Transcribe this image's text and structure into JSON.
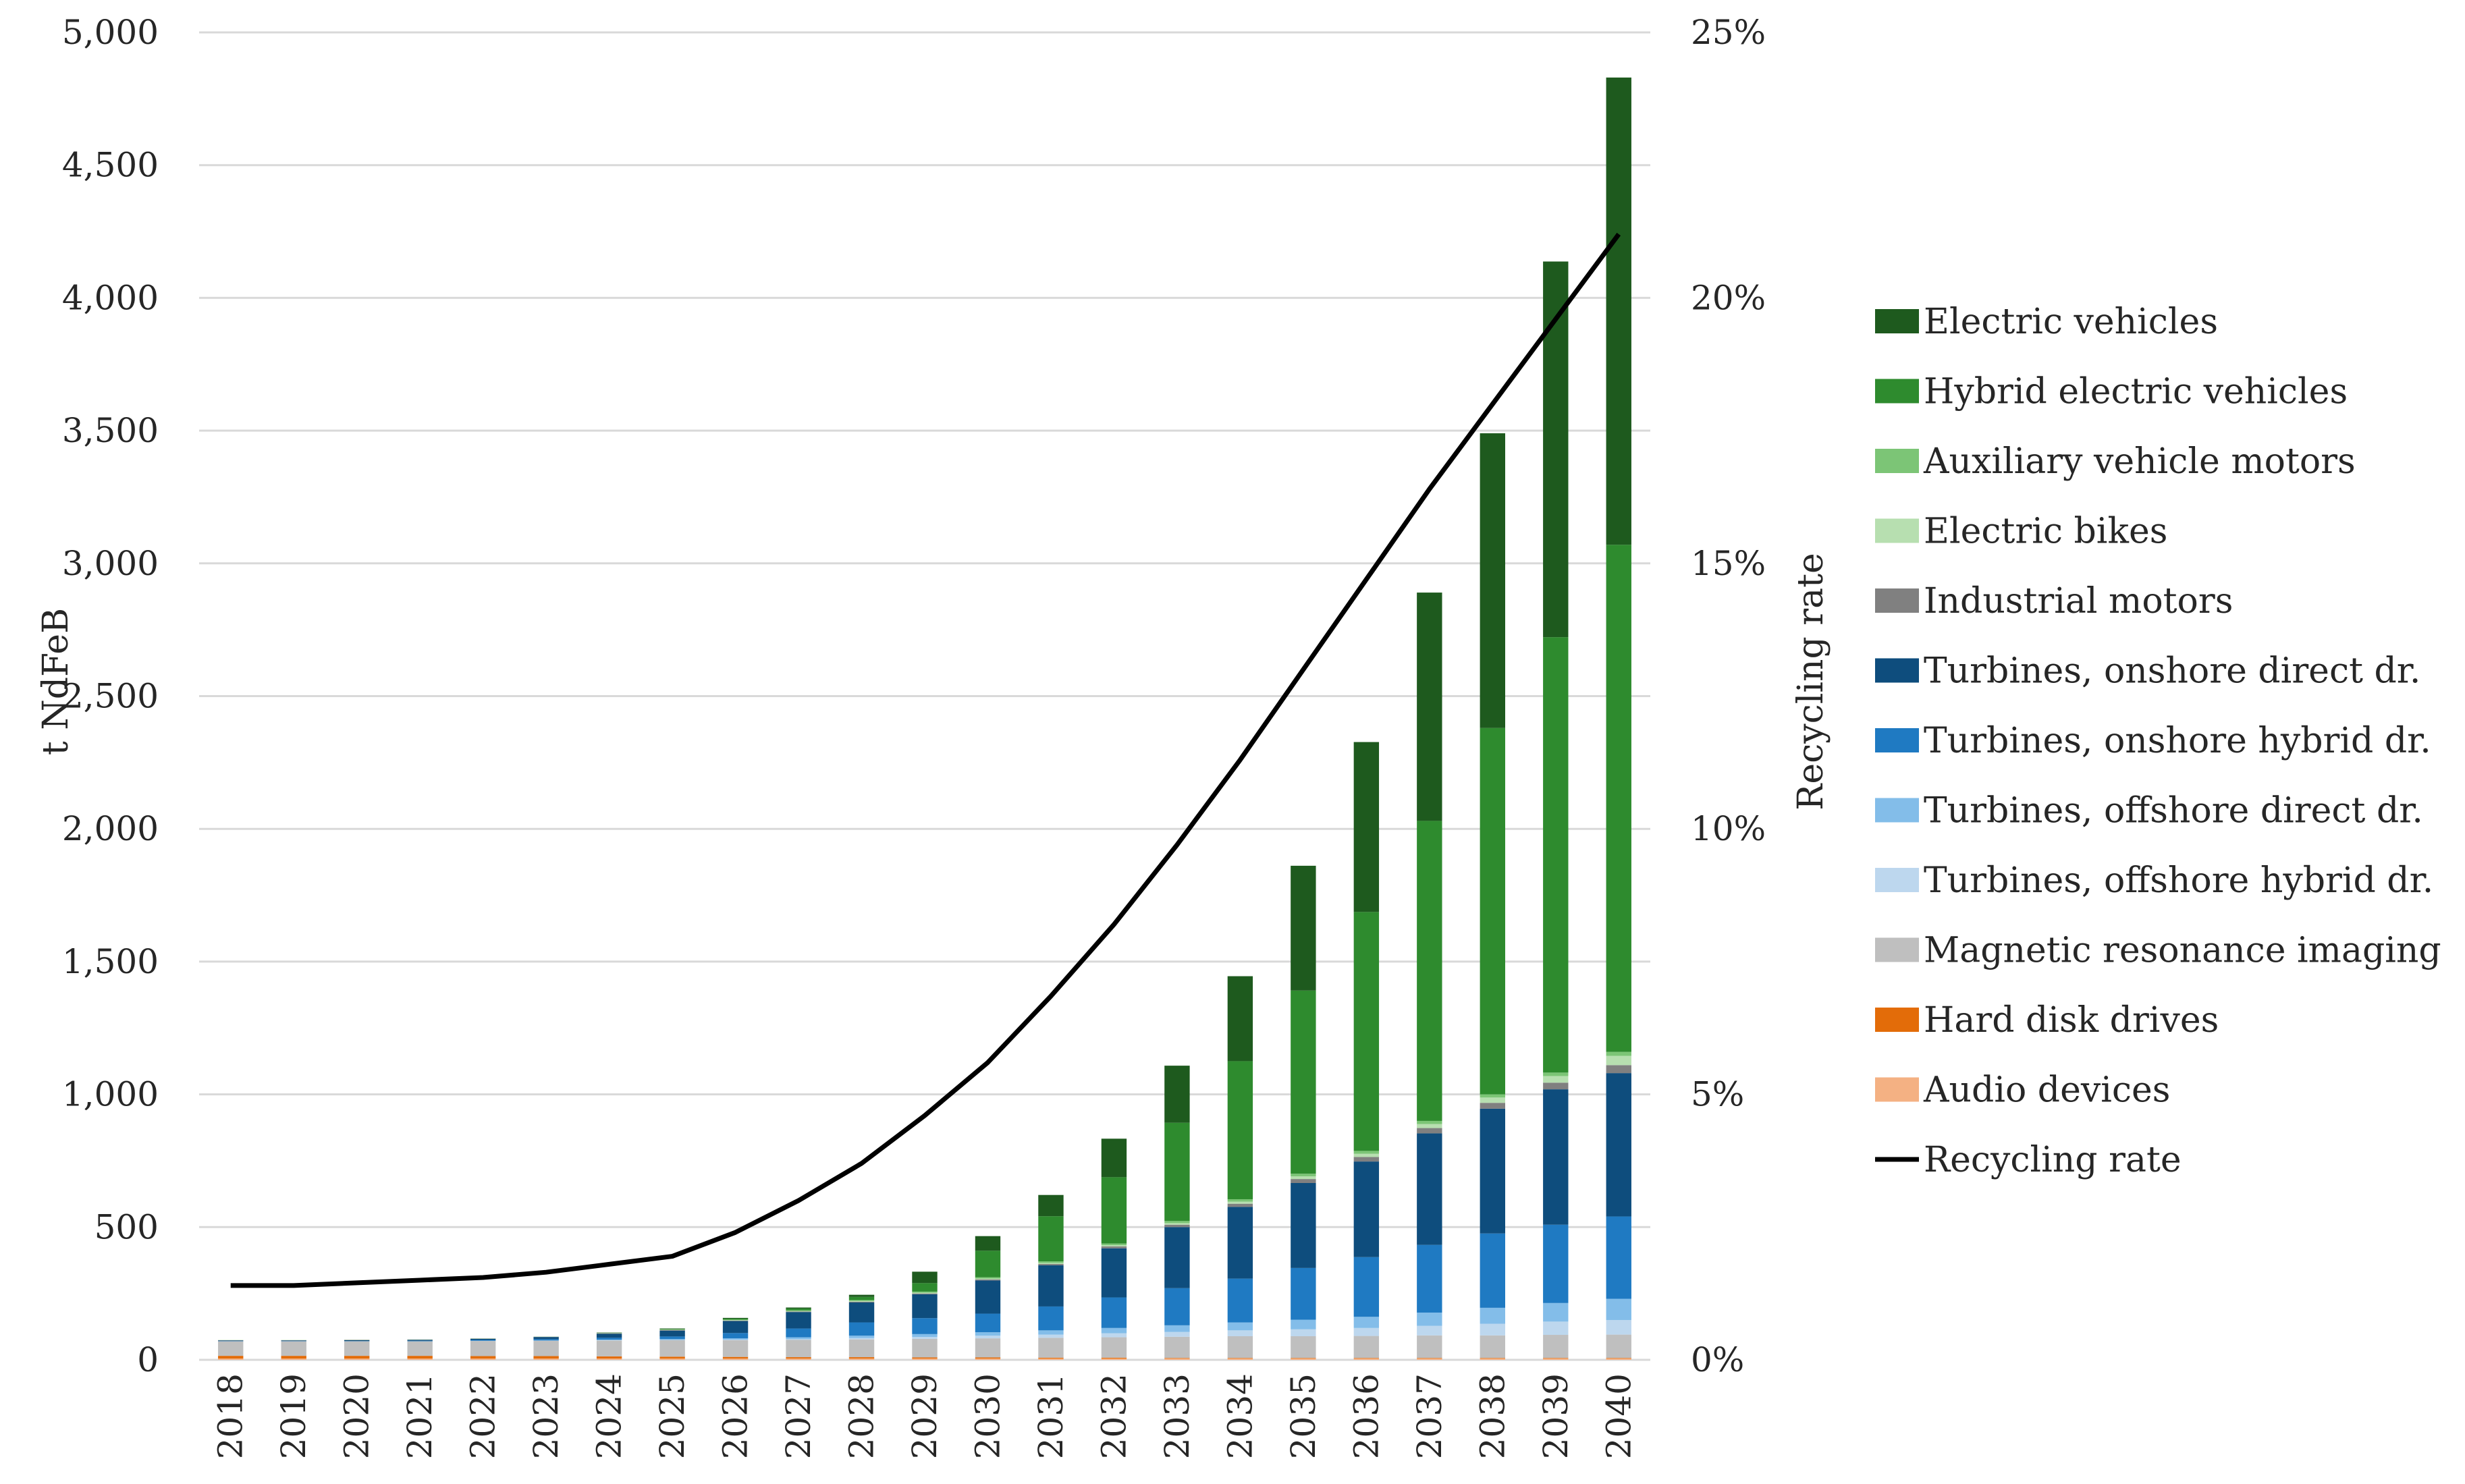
{
  "chart_data": {
    "type": "bar",
    "stacked": true,
    "title": "",
    "xlabel": "",
    "ylabel": "t NdFeB",
    "y2label": "Recycling rate",
    "ylim": [
      0,
      5000
    ],
    "y2lim": [
      0,
      25
    ],
    "yticks": [
      "0",
      "500",
      "1,000",
      "1,500",
      "2,000",
      "2,500",
      "3,000",
      "3,500",
      "4,000",
      "4,500",
      "5,000"
    ],
    "y2ticks": [
      "0%",
      "5%",
      "10%",
      "15%",
      "20%",
      "25%"
    ],
    "grid": true,
    "legend_position": "right",
    "categories": [
      "2018",
      "2019",
      "2020",
      "2021",
      "2022",
      "2023",
      "2024",
      "2025",
      "2026",
      "2027",
      "2028",
      "2029",
      "2030",
      "2031",
      "2032",
      "2033",
      "2034",
      "2035",
      "2036",
      "2037",
      "2038",
      "2039",
      "2040"
    ],
    "series": [
      {
        "name": "Audio devices",
        "color": "#f4b183",
        "values": [
          5,
          5,
          5,
          5,
          5,
          5,
          5,
          5,
          5,
          5,
          5,
          5,
          5,
          5,
          5,
          5,
          5,
          5,
          5,
          5,
          5,
          5,
          5
        ]
      },
      {
        "name": "Hard disk drives",
        "color": "#e36c09",
        "values": [
          10,
          10,
          10,
          10,
          9,
          9,
          8,
          7,
          6,
          5,
          5,
          4,
          4,
          3,
          3,
          2,
          2,
          2,
          2,
          2,
          2,
          2,
          2
        ]
      },
      {
        "name": "Magnetic resonance imaging",
        "color": "#bfbfbf",
        "values": [
          55,
          55,
          55,
          55,
          57,
          58,
          60,
          62,
          63,
          65,
          67,
          70,
          72,
          75,
          77,
          80,
          82,
          82,
          83,
          85,
          85,
          87,
          88
        ]
      },
      {
        "name": "Turbines, offshore hybrid dr.",
        "color": "#bdd7ee",
        "values": [
          0,
          0,
          0,
          0,
          0,
          0,
          1,
          1,
          2,
          3,
          5,
          7,
          10,
          12,
          15,
          18,
          22,
          26,
          30,
          36,
          44,
          50,
          55
        ]
      },
      {
        "name": "Turbines, offshore direct dr.",
        "color": "#83bde9",
        "values": [
          0,
          0,
          0,
          0,
          1,
          1,
          2,
          3,
          5,
          7,
          9,
          11,
          13,
          16,
          20,
          25,
          30,
          36,
          42,
          50,
          60,
          70,
          80
        ]
      },
      {
        "name": "Turbines, onshore hybrid dr.",
        "color": "#1f7ac2",
        "values": [
          1,
          1,
          1,
          2,
          3,
          5,
          7,
          10,
          20,
          33,
          50,
          60,
          70,
          90,
          115,
          140,
          165,
          195,
          225,
          255,
          280,
          295,
          310
        ]
      },
      {
        "name": "Turbines, onshore direct dr.",
        "color": "#0e4d7d",
        "values": [
          2,
          2,
          3,
          3,
          4,
          8,
          15,
          22,
          45,
          62,
          75,
          90,
          125,
          155,
          185,
          230,
          270,
          320,
          360,
          420,
          470,
          510,
          540
        ]
      },
      {
        "name": "Industrial motors",
        "color": "#808080",
        "values": [
          1,
          1,
          1,
          1,
          1,
          1,
          2,
          2,
          2,
          2,
          3,
          3,
          4,
          5,
          7,
          9,
          12,
          15,
          17,
          20,
          22,
          25,
          30
        ]
      },
      {
        "name": "Electric bikes",
        "color": "#b7dfb0",
        "values": [
          1,
          1,
          1,
          1,
          1,
          1,
          1,
          1,
          2,
          2,
          3,
          3,
          3,
          4,
          5,
          6,
          8,
          10,
          12,
          15,
          20,
          25,
          35
        ]
      },
      {
        "name": "Auxiliary vehicle motors",
        "color": "#7cc576",
        "values": [
          0,
          0,
          0,
          0,
          0,
          0,
          0,
          1,
          1,
          2,
          3,
          4,
          5,
          6,
          6,
          8,
          9,
          10,
          11,
          12,
          12,
          13,
          15
        ]
      },
      {
        "name": "Hybrid electric vehicles",
        "color": "#2e8b2e",
        "values": [
          0,
          0,
          0,
          0,
          0,
          0,
          1,
          2,
          4,
          7,
          12,
          32,
          100,
          170,
          250,
          370,
          520,
          690,
          900,
          1130,
          1380,
          1640,
          1910
        ]
      },
      {
        "name": "Electric vehicles",
        "color": "#1e5a1e",
        "values": [
          0,
          0,
          0,
          0,
          0,
          0,
          1,
          2,
          3,
          4,
          8,
          43,
          55,
          80,
          145,
          215,
          320,
          470,
          640,
          860,
          1110,
          1415,
          1760
        ]
      }
    ],
    "line": {
      "name": "Recycling rate",
      "color": "#000000",
      "axis": "right",
      "values": [
        1.4,
        1.4,
        1.45,
        1.5,
        1.55,
        1.65,
        1.8,
        1.95,
        2.4,
        3.0,
        3.7,
        4.6,
        5.6,
        6.85,
        8.2,
        9.7,
        11.3,
        13.0,
        14.7,
        16.4,
        18.0,
        19.6,
        21.2
      ]
    },
    "legend": [
      "Electric vehicles",
      "Hybrid electric vehicles",
      "Auxiliary vehicle motors",
      "Electric bikes",
      "Industrial motors",
      "Turbines, onshore direct dr.",
      "Turbines, onshore hybrid dr.",
      "Turbines, offshore direct dr.",
      "Turbines, offshore hybrid dr.",
      "Magnetic resonance imaging",
      "Hard disk drives",
      "Audio devices",
      "Recycling rate"
    ]
  }
}
